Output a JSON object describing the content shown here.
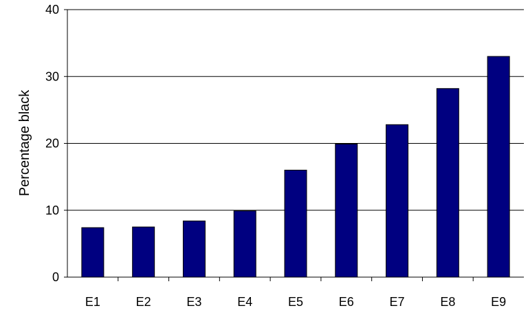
{
  "chart_data": {
    "type": "bar",
    "title": "",
    "xlabel": "",
    "ylabel": "Percentage black",
    "categories": [
      "E1",
      "E2",
      "E3",
      "E4",
      "E5",
      "E6",
      "E7",
      "E8",
      "E9"
    ],
    "values": [
      7.4,
      7.5,
      8.4,
      9.9,
      16.0,
      19.9,
      22.8,
      28.2,
      33.0
    ],
    "ylim": [
      0,
      40
    ],
    "yticks": [
      0,
      10,
      20,
      30,
      40
    ],
    "grid": true,
    "legend": "none",
    "bar_color": "#000080",
    "bar_edge_color": "#000000"
  }
}
